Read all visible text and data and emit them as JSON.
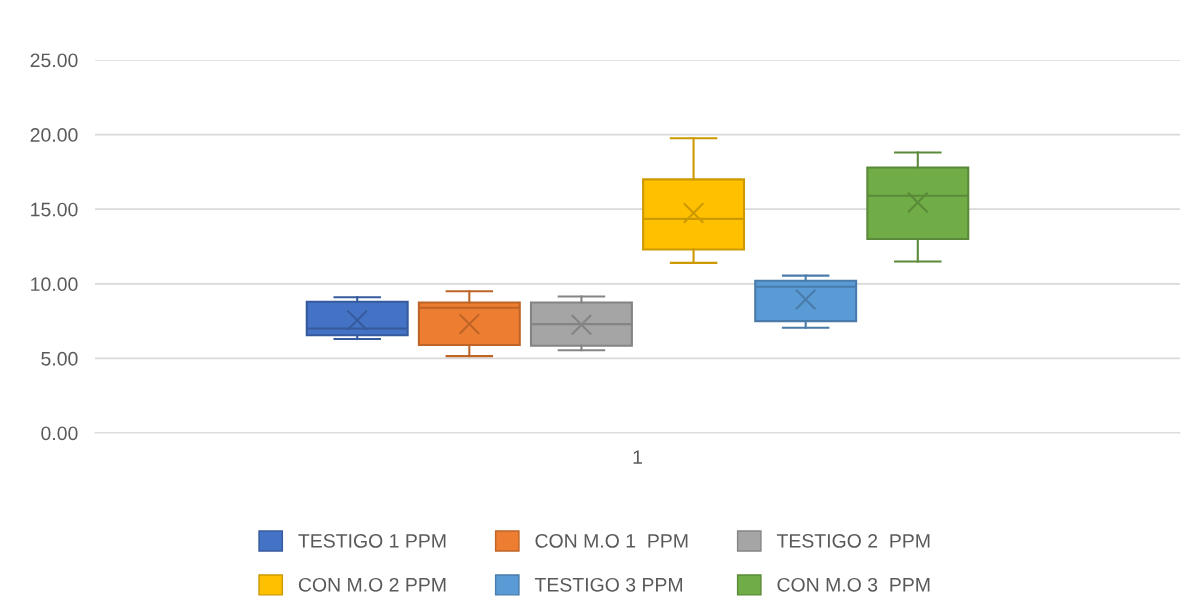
{
  "chart_data": {
    "type": "box",
    "categories": [
      "1"
    ],
    "ylim": [
      0,
      25
    ],
    "yticks": [
      {
        "value": 0,
        "label": "0.00"
      },
      {
        "value": 5,
        "label": "5.00"
      },
      {
        "value": 10,
        "label": "10.00"
      },
      {
        "value": 15,
        "label": "15.00"
      },
      {
        "value": 20,
        "label": "20.00"
      },
      {
        "value": 25,
        "label": "25.00"
      }
    ],
    "grid": "y",
    "legend": "bottom",
    "marker": "cross",
    "series": [
      {
        "name": "TESTIGO 1 PPM",
        "color": "#4472c4",
        "boxes": [
          {
            "low": 6.3,
            "q1": 6.55,
            "median": 7.0,
            "q3": 8.8,
            "high": 9.1,
            "mean": 7.55
          }
        ]
      },
      {
        "name": "CON M.O 1  PPM",
        "color": "#ed7d31",
        "boxes": [
          {
            "low": 5.15,
            "q1": 5.9,
            "median": 8.4,
            "q3": 8.75,
            "high": 9.5,
            "mean": 7.3
          }
        ]
      },
      {
        "name": "TESTIGO 2  PPM",
        "color": "#a5a5a5",
        "boxes": [
          {
            "low": 5.55,
            "q1": 5.85,
            "median": 7.3,
            "q3": 8.75,
            "high": 9.15,
            "mean": 7.25
          }
        ]
      },
      {
        "name": "CON M.O 2 PPM",
        "color": "#ffc000",
        "boxes": [
          {
            "low": 11.4,
            "q1": 12.3,
            "median": 14.35,
            "q3": 17.0,
            "high": 19.75,
            "mean": 14.75
          }
        ]
      },
      {
        "name": "TESTIGO 3 PPM",
        "color": "#5b9bd5",
        "boxes": [
          {
            "low": 7.05,
            "q1": 7.5,
            "median": 9.8,
            "q3": 10.2,
            "high": 10.55,
            "mean": 8.95
          }
        ]
      },
      {
        "name": "CON M.O 3  PPM",
        "color": "#70ad47",
        "boxes": [
          {
            "low": 11.5,
            "q1": 13.0,
            "median": 15.9,
            "q3": 17.8,
            "high": 18.8,
            "mean": 15.45
          }
        ]
      }
    ]
  }
}
